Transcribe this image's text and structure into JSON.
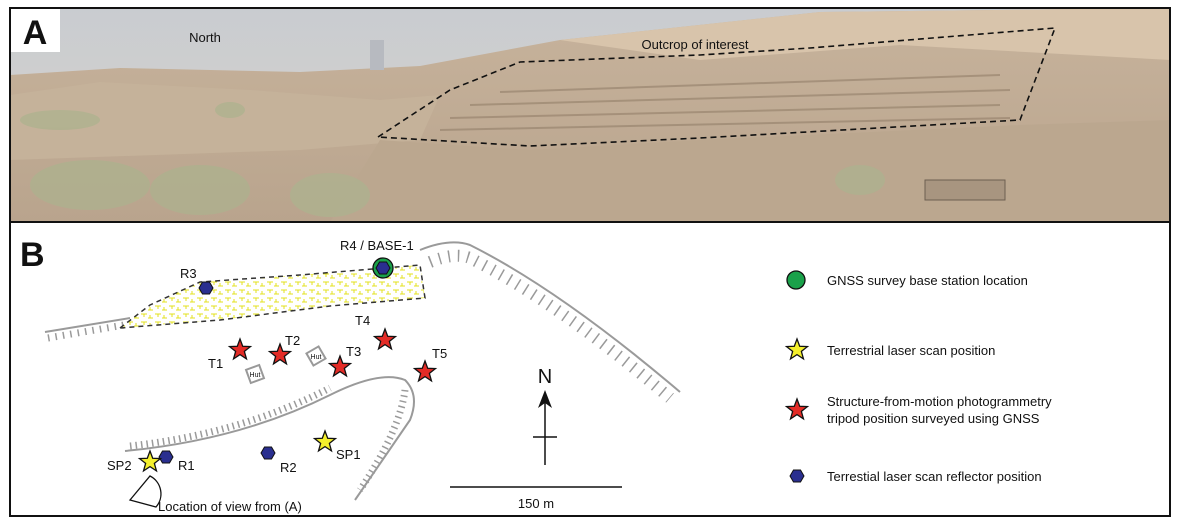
{
  "panel_a": {
    "label": "A",
    "north_label": "North",
    "outcrop_label": "Outcrop of interest"
  },
  "panel_b": {
    "label": "B",
    "map_labels": {
      "r4": "R4 / BASE-1",
      "r3": "R3",
      "r1": "R1",
      "r2": "R2",
      "t1": "T1",
      "t2": "T2",
      "t3": "T3",
      "t4": "T4",
      "t5": "T5",
      "sp1": "SP1",
      "sp2": "SP2",
      "hut1": "Hut",
      "hut2": "Hut",
      "view": "Location of view from (A)",
      "north": "N",
      "scale": "150 m"
    },
    "legend": [
      "GNSS survey base station location",
      "Terrestrial laser scan position",
      "Structure-from-motion photogrammetry",
      "tripod position surveyed using GNSS",
      "Terrestial laser scan reflector position"
    ]
  }
}
